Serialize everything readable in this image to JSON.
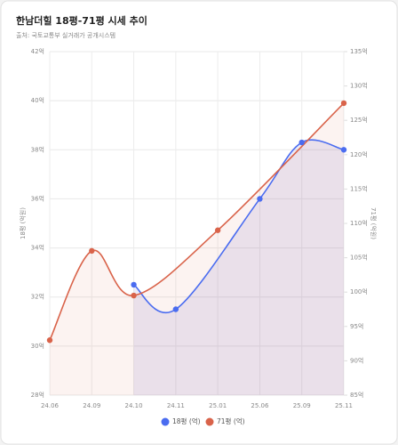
{
  "chart_data": {
    "type": "line",
    "title": "한남더힐 18평-71평 시세 추이",
    "subtitle": "출처: 국토교통부 실거래가 공개시스템",
    "categories": [
      "24.06",
      "24.09",
      "24.10",
      "24.11",
      "25.01",
      "25.06",
      "25.09",
      "25.11"
    ],
    "series": [
      {
        "name": "18평 (억)",
        "color": "#4a6cf0",
        "axis": "y",
        "values": [
          null,
          null,
          32.5,
          31.5,
          null,
          36,
          38.3,
          38
        ]
      },
      {
        "name": "71평 (억)",
        "color": "#d9634a",
        "axis": "y2",
        "values": [
          93,
          106,
          99.5,
          null,
          109,
          null,
          null,
          127.5
        ]
      }
    ],
    "ylabel": "18평 (억원)",
    "y2label": "71평 (억원)",
    "ylim": [
      28,
      42
    ],
    "yticks": [
      {
        "value": 28,
        "label": "28억"
      },
      {
        "value": 30,
        "label": "30억"
      },
      {
        "value": 32,
        "label": "32억"
      },
      {
        "value": 34,
        "label": "34억"
      },
      {
        "value": 36,
        "label": "36억"
      },
      {
        "value": 38,
        "label": "38억"
      },
      {
        "value": 40,
        "label": "40억"
      },
      {
        "value": 42,
        "label": "42억"
      }
    ],
    "y2lim": [
      85,
      135
    ],
    "y2ticks": [
      {
        "value": 85,
        "label": "85억"
      },
      {
        "value": 90,
        "label": "90억"
      },
      {
        "value": 95,
        "label": "95억"
      },
      {
        "value": 100,
        "label": "100억"
      },
      {
        "value": 105,
        "label": "105억"
      },
      {
        "value": 110,
        "label": "110억"
      },
      {
        "value": 115,
        "label": "115억"
      },
      {
        "value": 120,
        "label": "120억"
      },
      {
        "value": 125,
        "label": "125억"
      },
      {
        "value": 130,
        "label": "130억"
      },
      {
        "value": 135,
        "label": "135억"
      }
    ],
    "grid": true,
    "legend": "bottom",
    "span_gaps": true
  }
}
